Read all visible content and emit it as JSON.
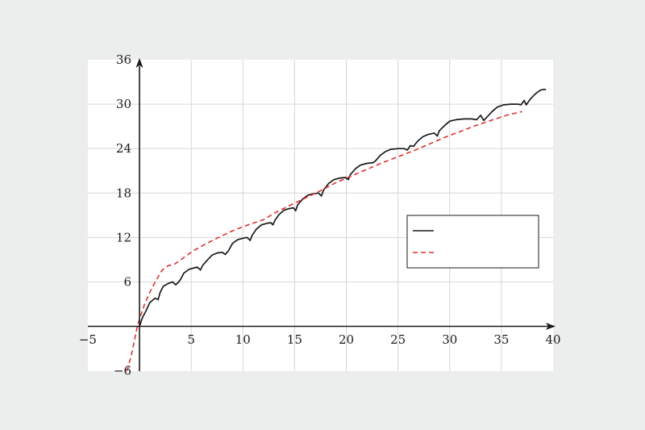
{
  "chart_data": {
    "type": "line",
    "title": "",
    "xlabel": "",
    "ylabel": "",
    "xlim": [
      -5,
      40
    ],
    "ylim": [
      -6,
      36
    ],
    "xticks": [
      -5,
      5,
      10,
      15,
      20,
      25,
      30,
      35,
      40
    ],
    "yticks": [
      -6,
      6,
      12,
      18,
      24,
      30,
      36
    ],
    "grid": true,
    "legend": "right",
    "series": [
      {
        "color": "#1a1a1a",
        "dash": "solid",
        "points": [
          [
            0,
            0
          ],
          [
            0.3,
            1.2
          ],
          [
            0.6,
            2.0
          ],
          [
            1.0,
            3.2
          ],
          [
            1.5,
            3.8
          ],
          [
            1.8,
            3.6
          ],
          [
            2.0,
            4.6
          ],
          [
            2.3,
            5.4
          ],
          [
            2.8,
            5.8
          ],
          [
            3.2,
            6.0
          ],
          [
            3.5,
            5.6
          ],
          [
            3.8,
            6.0
          ],
          [
            4.0,
            6.4
          ],
          [
            4.3,
            7.2
          ],
          [
            4.8,
            7.7
          ],
          [
            5.3,
            7.9
          ],
          [
            5.6,
            8.0
          ],
          [
            5.9,
            7.6
          ],
          [
            6.1,
            8.2
          ],
          [
            6.6,
            9.0
          ],
          [
            7.0,
            9.6
          ],
          [
            7.5,
            9.9
          ],
          [
            8.0,
            10.0
          ],
          [
            8.3,
            9.7
          ],
          [
            8.6,
            10.2
          ],
          [
            9.0,
            11.2
          ],
          [
            9.5,
            11.7
          ],
          [
            10.0,
            11.9
          ],
          [
            10.4,
            12.0
          ],
          [
            10.7,
            11.6
          ],
          [
            10.9,
            12.3
          ],
          [
            11.3,
            13.1
          ],
          [
            11.8,
            13.7
          ],
          [
            12.3,
            13.9
          ],
          [
            12.7,
            14.0
          ],
          [
            12.9,
            13.7
          ],
          [
            13.1,
            14.3
          ],
          [
            13.5,
            15.1
          ],
          [
            14.0,
            15.7
          ],
          [
            14.5,
            15.9
          ],
          [
            14.9,
            16.0
          ],
          [
            15.1,
            15.6
          ],
          [
            15.3,
            16.4
          ],
          [
            15.8,
            17.2
          ],
          [
            16.3,
            17.7
          ],
          [
            16.8,
            17.9
          ],
          [
            17.3,
            18.0
          ],
          [
            17.6,
            17.6
          ],
          [
            17.8,
            18.4
          ],
          [
            18.3,
            19.3
          ],
          [
            18.8,
            19.8
          ],
          [
            19.3,
            20.0
          ],
          [
            19.9,
            20.1
          ],
          [
            20.2,
            19.8
          ],
          [
            20.4,
            20.5
          ],
          [
            20.9,
            21.3
          ],
          [
            21.4,
            21.8
          ],
          [
            22.0,
            22.0
          ],
          [
            22.6,
            22.1
          ],
          [
            22.8,
            22.3
          ],
          [
            23.3,
            23.1
          ],
          [
            23.8,
            23.6
          ],
          [
            24.3,
            23.9
          ],
          [
            25.0,
            24.0
          ],
          [
            25.6,
            24.0
          ],
          [
            25.9,
            23.8
          ],
          [
            26.2,
            24.4
          ],
          [
            26.5,
            24.3
          ],
          [
            26.9,
            25.0
          ],
          [
            27.4,
            25.6
          ],
          [
            27.9,
            25.9
          ],
          [
            28.5,
            26.1
          ],
          [
            28.8,
            25.7
          ],
          [
            29.0,
            26.4
          ],
          [
            29.5,
            27.1
          ],
          [
            30.0,
            27.7
          ],
          [
            30.6,
            27.9
          ],
          [
            31.4,
            28.0
          ],
          [
            32.1,
            28.0
          ],
          [
            32.6,
            27.9
          ],
          [
            33.0,
            28.5
          ],
          [
            33.3,
            27.8
          ],
          [
            33.7,
            28.4
          ],
          [
            34.1,
            29.0
          ],
          [
            34.6,
            29.6
          ],
          [
            35.2,
            29.9
          ],
          [
            35.9,
            30.0
          ],
          [
            36.6,
            30.0
          ],
          [
            36.9,
            29.9
          ],
          [
            37.2,
            30.5
          ],
          [
            37.4,
            29.9
          ],
          [
            37.8,
            30.7
          ],
          [
            38.3,
            31.4
          ],
          [
            38.8,
            31.9
          ],
          [
            39.2,
            32.0
          ],
          [
            39.3,
            31.9
          ]
        ]
      },
      {
        "color": "#e03030",
        "dash": "dashed",
        "points": [
          [
            -1.2,
            -6.0
          ],
          [
            -0.8,
            -4.0
          ],
          [
            -0.5,
            -2.0
          ],
          [
            -0.2,
            0.0
          ],
          [
            0.0,
            1.0
          ],
          [
            0.5,
            3.0
          ],
          [
            1.0,
            4.6
          ],
          [
            1.6,
            6.2
          ],
          [
            2.2,
            7.6
          ],
          [
            2.8,
            8.2
          ],
          [
            3.4,
            8.4
          ],
          [
            4.2,
            9.2
          ],
          [
            5.2,
            10.2
          ],
          [
            6.5,
            11.2
          ],
          [
            7.8,
            12.1
          ],
          [
            9.0,
            12.9
          ],
          [
            10.5,
            13.7
          ],
          [
            12.0,
            14.4
          ],
          [
            13.2,
            15.4
          ],
          [
            14.5,
            16.3
          ],
          [
            16.0,
            17.3
          ],
          [
            17.5,
            18.3
          ],
          [
            19.0,
            19.4
          ],
          [
            20.5,
            20.3
          ],
          [
            22.0,
            21.2
          ],
          [
            23.5,
            22.1
          ],
          [
            25.0,
            22.9
          ],
          [
            26.5,
            23.7
          ],
          [
            28.0,
            24.6
          ],
          [
            29.5,
            25.5
          ],
          [
            31.0,
            26.3
          ],
          [
            32.5,
            27.1
          ],
          [
            34.0,
            27.8
          ],
          [
            35.5,
            28.5
          ],
          [
            37.0,
            29.0
          ]
        ]
      }
    ]
  }
}
